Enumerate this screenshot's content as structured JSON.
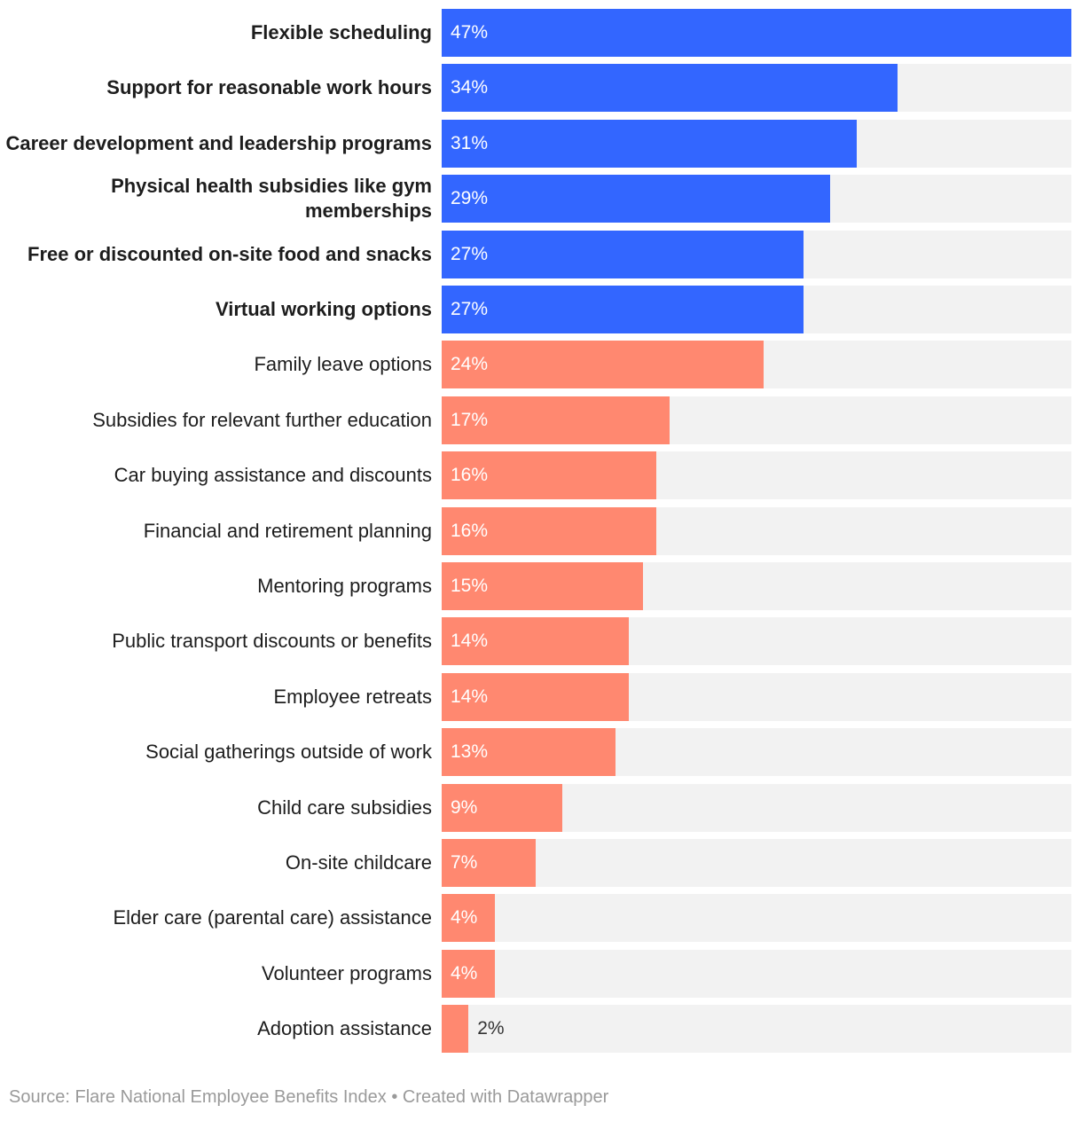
{
  "chart_data": {
    "type": "bar",
    "orientation": "horizontal",
    "categories": [
      "Flexible scheduling",
      "Support for reasonable work hours",
      "Career development and leadership programs",
      "Physical health subsidies like gym memberships",
      "Free or discounted on-site food and snacks",
      "Virtual working options",
      "Family leave options",
      "Subsidies for relevant further education",
      "Car buying assistance and discounts",
      "Financial and retirement planning",
      "Mentoring programs",
      "Public transport discounts or benefits",
      "Employee retreats",
      "Social gatherings outside of work",
      "Child care subsidies",
      "On-site childcare",
      "Elder care (parental care) assistance",
      "Volunteer programs",
      "Adoption assistance"
    ],
    "values": [
      47,
      34,
      31,
      29,
      27,
      27,
      24,
      17,
      16,
      16,
      15,
      14,
      14,
      13,
      9,
      7,
      4,
      4,
      2
    ],
    "value_labels": [
      "47%",
      "34%",
      "31%",
      "29%",
      "27%",
      "27%",
      "24%",
      "17%",
      "16%",
      "16%",
      "15%",
      "14%",
      "14%",
      "13%",
      "9%",
      "7%",
      "4%",
      "4%",
      "2%"
    ],
    "colors": [
      "#3366ff",
      "#3366ff",
      "#3366ff",
      "#3366ff",
      "#3366ff",
      "#3366ff",
      "#ff8870",
      "#ff8870",
      "#ff8870",
      "#ff8870",
      "#ff8870",
      "#ff8870",
      "#ff8870",
      "#ff8870",
      "#ff8870",
      "#ff8870",
      "#ff8870",
      "#ff8870",
      "#ff8870"
    ],
    "bold": [
      true,
      true,
      true,
      true,
      true,
      true,
      false,
      false,
      false,
      false,
      false,
      false,
      false,
      false,
      false,
      false,
      false,
      false,
      false
    ],
    "track_color": "#f2f2f2",
    "xlim": [
      0,
      47
    ],
    "source": "Source: Flare National Employee Benefits Index • Created with Datawrapper"
  }
}
